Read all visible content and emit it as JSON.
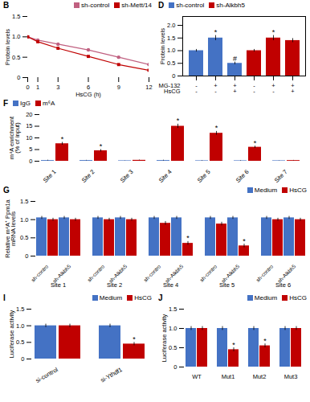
{
  "chart_data": [
    {
      "title": "B",
      "type": "line",
      "x": [
        0,
        1,
        3,
        6,
        9,
        12
      ],
      "xlabel": "HsCG (h)",
      "ylabel": "Protein levels",
      "xlim": [
        0,
        12
      ],
      "xticks": [
        0,
        1,
        3,
        6,
        9,
        12
      ],
      "ylim": [
        0,
        1.5
      ],
      "yticks": [
        0,
        0.5,
        {
          "value": 1,
          "label": "1.0"
        },
        1.5
      ],
      "legend": "upper right",
      "series": [
        {
          "name": "sh-control",
          "color": "#C06080",
          "marker": "circle",
          "values": [
            1.0,
            0.92,
            0.82,
            0.68,
            0.5,
            0.32
          ]
        },
        {
          "name": "sh-Mett/14",
          "color": "#C00000",
          "marker": "square",
          "values": [
            1.0,
            0.88,
            0.72,
            0.52,
            0.32,
            0.18
          ]
        }
      ]
    },
    {
      "title": "D",
      "type": "bar",
      "categories": [
        null,
        null,
        null,
        null,
        null,
        null
      ],
      "values": [
        1.0,
        1.5,
        0.5,
        1.0,
        1.5,
        1.4
      ],
      "errors": [
        0.05,
        0.1,
        0.05,
        0.05,
        0.1,
        0.08
      ],
      "colors": [
        "#4472C4",
        "#4472C4",
        "#4472C4",
        "#C00000",
        "#C00000",
        "#C00000"
      ],
      "ylabel": "Protein levels",
      "ylim": [
        0,
        2.35
      ],
      "yticks": [
        0,
        0.5,
        {
          "value": 1,
          "label": "1.0"
        },
        1.5,
        {
          "value": 2,
          "label": "2.0"
        }
      ],
      "legend": "upper left",
      "legend_entries": [
        {
          "name": "sh-control",
          "color": "#4472C4"
        },
        {
          "name": "sh-Alkbh5",
          "color": "#C00000"
        }
      ],
      "condition_rows": [
        {
          "name": "MG-132",
          "labels": [
            "-",
            "+",
            "+",
            "-",
            "+",
            "+"
          ]
        },
        {
          "name": "HsCG",
          "labels": [
            "-",
            "-",
            "+",
            "-",
            "-",
            "+"
          ]
        }
      ],
      "annotations": [
        {
          "index": 1,
          "text": "*"
        },
        {
          "index": 4,
          "text": "*"
        },
        {
          "index": 2,
          "text": "#"
        }
      ]
    },
    {
      "title": "F",
      "type": "bar",
      "categories": [
        "Site 1",
        "Site 2",
        "Site 3",
        "Site 4",
        "Site 5",
        "Site 6",
        "Site 7"
      ],
      "ylabel": "m⁴A enrichment\n(% of input)",
      "ylim": [
        0,
        20
      ],
      "yticks": [
        0,
        5,
        10,
        15,
        20
      ],
      "legend": "upper left",
      "series": [
        {
          "name": "IgG",
          "color": "#4472C4",
          "values": [
            0.3,
            0.3,
            0.2,
            0.3,
            0.2,
            0.2,
            0.2
          ],
          "errors": [
            0.15,
            0.1,
            0.05,
            0.15,
            0.1,
            0.1,
            0.05
          ]
        },
        {
          "name": "m⁶A",
          "color": "#C00000",
          "values": [
            7.5,
            4.5,
            0.4,
            15.0,
            12.0,
            6.0,
            0.3
          ],
          "errors": [
            0.6,
            0.5,
            0.1,
            0.9,
            0.8,
            0.5,
            0.08
          ]
        }
      ],
      "annotations": [
        {
          "series": 1,
          "index": 0,
          "text": "*"
        },
        {
          "series": 1,
          "index": 1,
          "text": "*"
        },
        {
          "series": 1,
          "index": 3,
          "text": "*"
        },
        {
          "series": 1,
          "index": 4,
          "text": "*"
        },
        {
          "series": 1,
          "index": 5,
          "text": "*"
        }
      ]
    },
    {
      "title": "G",
      "type": "bar",
      "categories": [
        "Site 1",
        "Site 2",
        "Site 4",
        "Site 5",
        "Site 6"
      ],
      "ylabel": "Relative m⁴A⁺ Ppm1a\nmRNA levels",
      "ylim": [
        0,
        1.5
      ],
      "yticks": [
        0,
        0.5,
        {
          "value": 1,
          "label": "1.0"
        },
        1.5
      ],
      "legend": "upper right",
      "series": [
        {
          "name": "Medium",
          "group": "sh-contro",
          "color": "#4472C4",
          "values": [
            1.05,
            1.05,
            1.05,
            1.05,
            1.05
          ],
          "errors": [
            0.04,
            0.04,
            0.04,
            0.04,
            0.04
          ]
        },
        {
          "name": "HsCG",
          "group": "sh-contro",
          "color": "#C00000",
          "values": [
            1.0,
            1.0,
            0.9,
            0.88,
            1.0
          ],
          "errors": [
            0.04,
            0.04,
            0.05,
            0.05,
            0.04
          ]
        },
        {
          "name": "Medium",
          "group": "sh-Alkbh5",
          "color": "#4472C4",
          "values": [
            1.05,
            1.05,
            1.05,
            1.05,
            1.05
          ],
          "errors": [
            0.04,
            0.04,
            0.04,
            0.04,
            0.04
          ]
        },
        {
          "name": "HsCG",
          "group": "sh-Alkbh5",
          "color": "#C00000",
          "values": [
            1.0,
            1.0,
            0.35,
            0.28,
            1.0
          ],
          "errors": [
            0.04,
            0.04,
            0.05,
            0.05,
            0.04
          ]
        }
      ],
      "annotations": [
        {
          "series": 3,
          "index": 2,
          "text": "*"
        },
        {
          "series": 3,
          "index": 3,
          "text": "*"
        }
      ]
    },
    {
      "title": "I",
      "type": "bar",
      "categories": [
        "si-control",
        "si-Ythdf1"
      ],
      "ylabel": "Luciferase activity",
      "ylim": [
        0,
        1.5
      ],
      "yticks": [
        0,
        0.5,
        {
          "value": 1,
          "label": "1.0"
        },
        1.5
      ],
      "legend": "upper right",
      "series": [
        {
          "name": "Medium",
          "color": "#4472C4",
          "values": [
            1.0,
            1.0
          ],
          "errors": [
            0.05,
            0.05
          ]
        },
        {
          "name": "HsCG",
          "color": "#C00000",
          "values": [
            1.0,
            0.45
          ],
          "errors": [
            0.05,
            0.05
          ]
        }
      ],
      "annotations": [
        {
          "series": 1,
          "index": 1,
          "text": "*"
        }
      ]
    },
    {
      "title": "J",
      "type": "bar",
      "categories": [
        "WT",
        "Mut1",
        "Mut2",
        "Mut3"
      ],
      "ylabel": "Luciferase activity",
      "ylim": [
        0,
        1.5
      ],
      "yticks": [
        0,
        0.5,
        {
          "value": 1,
          "label": "1.0"
        },
        1.5
      ],
      "legend": "upper right",
      "series": [
        {
          "name": "Medium",
          "color": "#4472C4",
          "values": [
            1.0,
            1.0,
            1.0,
            1.0
          ],
          "errors": [
            0.05,
            0.05,
            0.05,
            0.05
          ]
        },
        {
          "name": "HsCG",
          "color": "#C00000",
          "values": [
            1.0,
            0.45,
            0.55,
            1.0
          ],
          "errors": [
            0.05,
            0.05,
            0.05,
            0.05
          ]
        }
      ],
      "annotations": [
        {
          "series": 1,
          "index": 1,
          "text": "*"
        },
        {
          "series": 1,
          "index": 2,
          "text": "*"
        }
      ]
    }
  ]
}
